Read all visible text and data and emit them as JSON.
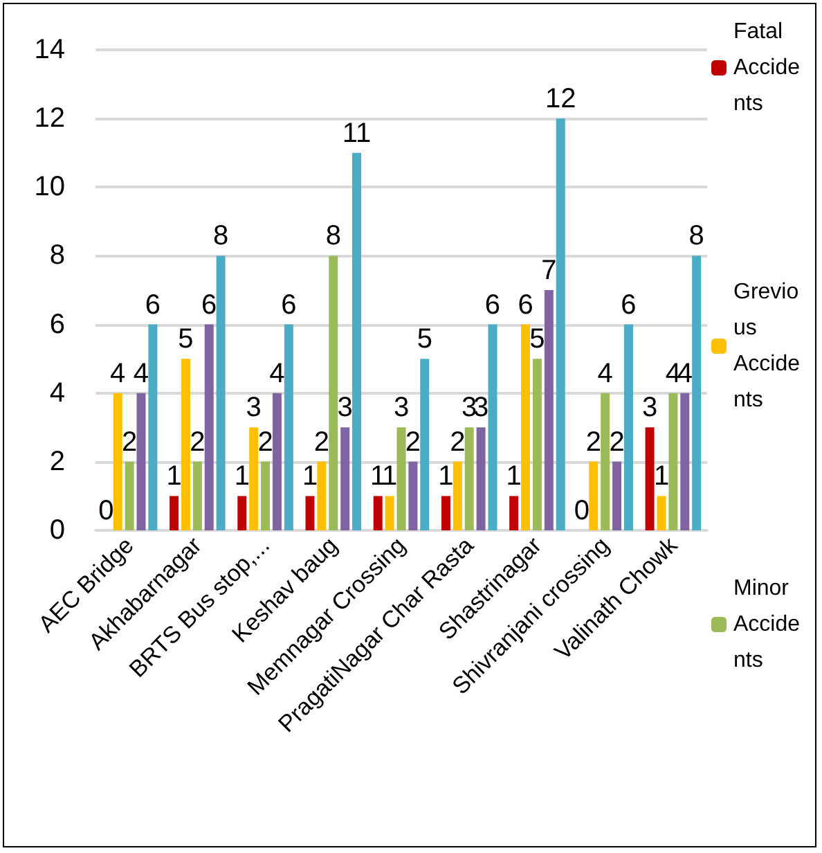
{
  "chart_data": {
    "type": "bar",
    "categories": [
      "AEC Bridge",
      "Akhabarnagar",
      "BRTS Bus stop,...",
      "Keshav baug",
      "Memnagar Crossing",
      "PragatiNagar Char Rasta",
      "Shastrinagar",
      "Shivranjani crossing",
      "Valinath Chowk"
    ],
    "series": [
      {
        "name": "Fatal Accidents",
        "color": "#c00000",
        "values": [
          0,
          1,
          1,
          1,
          1,
          1,
          1,
          0,
          3
        ]
      },
      {
        "name": "Grevious Accidents",
        "color": "#ffc000",
        "values": [
          4,
          5,
          3,
          2,
          1,
          2,
          6,
          2,
          1
        ]
      },
      {
        "name": "Minor Accidents",
        "color": "#9bbb59",
        "values": [
          2,
          2,
          2,
          8,
          3,
          3,
          5,
          4,
          4
        ]
      },
      {
        "color": "#8064a2",
        "values": [
          4,
          6,
          4,
          3,
          2,
          3,
          7,
          2,
          4
        ]
      },
      {
        "color": "#4bacc6",
        "values": [
          6,
          8,
          6,
          11,
          5,
          6,
          12,
          6,
          8
        ]
      }
    ],
    "ylim": [
      0,
      14
    ],
    "yticks": [
      0,
      2,
      4,
      6,
      8,
      10,
      12,
      14
    ],
    "grid": "y",
    "legend": "right",
    "data_labels": true
  }
}
